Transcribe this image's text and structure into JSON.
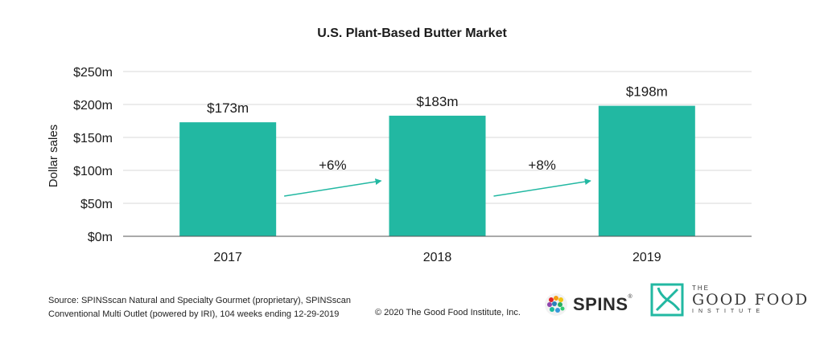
{
  "chart_data": {
    "type": "bar",
    "title": "U.S. Plant-Based Butter Market",
    "xlabel": "",
    "ylabel": "Dollar sales",
    "categories": [
      "2017",
      "2018",
      "2019"
    ],
    "values": [
      173,
      183,
      198
    ],
    "data_labels": [
      "$173m",
      "$183m",
      "$198m"
    ],
    "ylim": [
      0,
      250
    ],
    "yticks": [
      0,
      50,
      100,
      150,
      200,
      250
    ],
    "ytick_labels": [
      "$0m",
      "$50m",
      "$100m",
      "$150m",
      "$200m",
      "$250m"
    ],
    "grid": true,
    "bar_color": "#22b8a2",
    "arrow_color": "#22b8a2",
    "growth_annotations": [
      {
        "from": "2017",
        "to": "2018",
        "label": "+6%"
      },
      {
        "from": "2018",
        "to": "2019",
        "label": "+8%"
      }
    ]
  },
  "footer": {
    "source_line1": "Source: SPINSscan Natural and Specialty Gourmet (proprietary), SPINSscan",
    "source_line2": "Conventional Multi Outlet (powered by IRI), 104 weeks ending 12-29-2019",
    "copyright": "© 2020 The Good Food Institute, Inc."
  },
  "logos": {
    "spins_name": "SPINS",
    "spins_mark": "®",
    "gfi_the": "THE",
    "gfi_name": "GOOD FOOD",
    "gfi_institute": "INSTITUTE",
    "gfi_color": "#22b8a2"
  }
}
